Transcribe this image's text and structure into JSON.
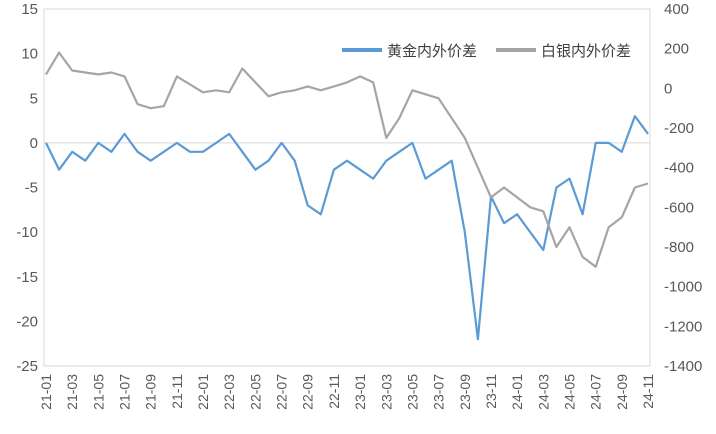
{
  "chart_data": {
    "type": "line",
    "title": "",
    "xlabel": "",
    "ylabel_left": "",
    "ylabel_right": "",
    "legend_position": "top-right",
    "grid": false,
    "left_axis": {
      "min": -25,
      "max": 15,
      "step": 5,
      "tick_labels": [
        "15",
        "10",
        "5",
        "0",
        "-5",
        "-10",
        "-15",
        "-20",
        "-25"
      ]
    },
    "right_axis": {
      "min": -1400,
      "max": 400,
      "step": 200,
      "tick_labels": [
        "400",
        "200",
        "0",
        "-200",
        "-400",
        "-600",
        "-800",
        "-1000",
        "-1200",
        "-1400"
      ]
    },
    "x_tick_labels": [
      "21-01",
      "21-03",
      "21-05",
      "21-07",
      "21-09",
      "21-11",
      "22-01",
      "22-03",
      "22-05",
      "22-07",
      "22-09",
      "22-11",
      "23-01",
      "23-03",
      "23-05",
      "23-07",
      "23-09",
      "23-11",
      "24-01",
      "24-03",
      "24-05",
      "24-07",
      "24-09",
      "24-11"
    ],
    "x_range": [
      "2021-01",
      "2024-11"
    ],
    "series": [
      {
        "name": "黄金内外价差",
        "axis": "left",
        "color": "#5b9bd5",
        "x": [
          "2021-01",
          "2021-02",
          "2021-03",
          "2021-04",
          "2021-05",
          "2021-06",
          "2021-07",
          "2021-08",
          "2021-09",
          "2021-10",
          "2021-11",
          "2021-12",
          "2022-01",
          "2022-02",
          "2022-03",
          "2022-04",
          "2022-05",
          "2022-06",
          "2022-07",
          "2022-08",
          "2022-09",
          "2022-10",
          "2022-11",
          "2022-12",
          "2023-01",
          "2023-02",
          "2023-03",
          "2023-04",
          "2023-05",
          "2023-06",
          "2023-07",
          "2023-08",
          "2023-09",
          "2023-10",
          "2023-11",
          "2023-12",
          "2024-01",
          "2024-02",
          "2024-03",
          "2024-04",
          "2024-05",
          "2024-06",
          "2024-07",
          "2024-08",
          "2024-09",
          "2024-10",
          "2024-11"
        ],
        "values": [
          0,
          -3,
          -1,
          -2,
          0,
          -1,
          1,
          -1,
          -2,
          -1,
          0,
          -1,
          -1,
          0,
          1,
          -1,
          -3,
          -2,
          0,
          -2,
          -7,
          -8,
          -3,
          -2,
          -3,
          -4,
          -2,
          -1,
          0,
          -4,
          -3,
          -2,
          -10,
          -22,
          -6,
          -9,
          -8,
          -10,
          -12,
          -5,
          -4,
          -8,
          0,
          0,
          -1,
          3,
          1
        ]
      },
      {
        "name": "白银内外价差",
        "axis": "right",
        "color": "#a5a5a5",
        "x": [
          "2021-01",
          "2021-02",
          "2021-03",
          "2021-04",
          "2021-05",
          "2021-06",
          "2021-07",
          "2021-08",
          "2021-09",
          "2021-10",
          "2021-11",
          "2021-12",
          "2022-01",
          "2022-02",
          "2022-03",
          "2022-04",
          "2022-05",
          "2022-06",
          "2022-07",
          "2022-08",
          "2022-09",
          "2022-10",
          "2022-11",
          "2022-12",
          "2023-01",
          "2023-02",
          "2023-03",
          "2023-04",
          "2023-05",
          "2023-06",
          "2023-07",
          "2023-08",
          "2023-09",
          "2023-10",
          "2023-11",
          "2023-12",
          "2024-01",
          "2024-02",
          "2024-03",
          "2024-04",
          "2024-05",
          "2024-06",
          "2024-07",
          "2024-08",
          "2024-09",
          "2024-10",
          "2024-11"
        ],
        "values": [
          70,
          180,
          90,
          80,
          70,
          80,
          60,
          -80,
          -100,
          -90,
          60,
          20,
          -20,
          -10,
          -20,
          100,
          30,
          -40,
          -20,
          -10,
          10,
          -10,
          10,
          30,
          60,
          30,
          -250,
          -150,
          -10,
          -30,
          -50,
          -150,
          -250,
          -400,
          -550,
          -500,
          -550,
          -600,
          -620,
          -800,
          -700,
          -850,
          -900,
          -700,
          -650,
          -500,
          -480
        ]
      }
    ]
  }
}
